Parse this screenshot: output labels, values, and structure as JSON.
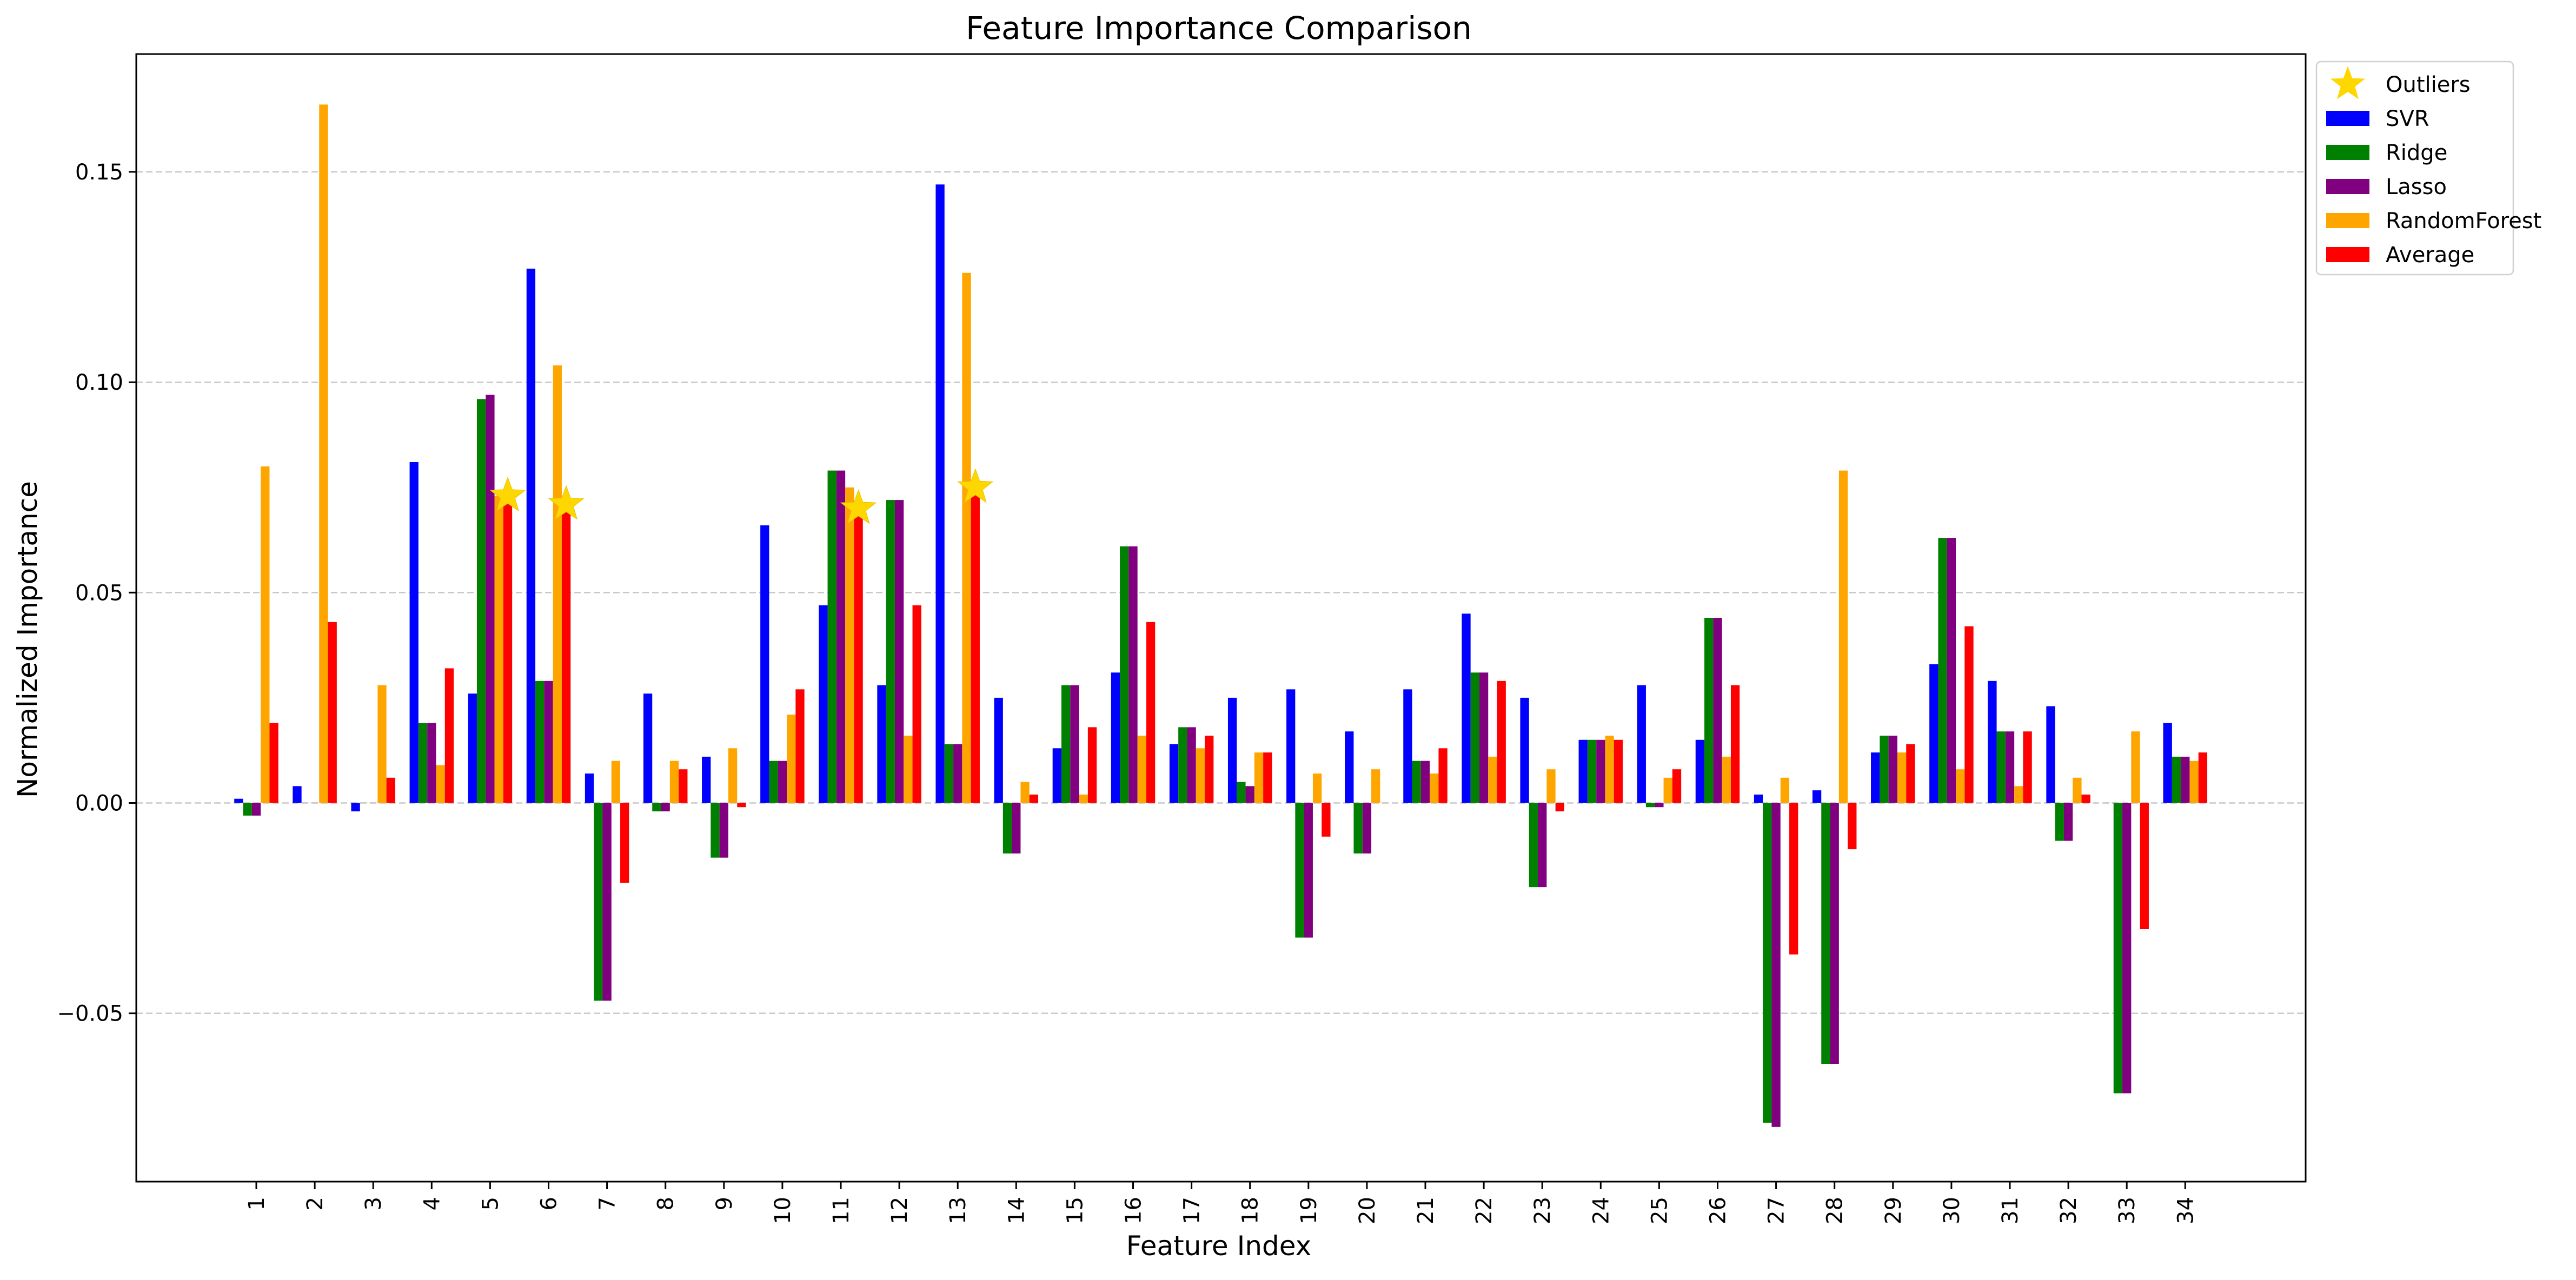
{
  "chart_data": {
    "type": "bar",
    "title": "Feature Importance Comparison",
    "xlabel": "Feature Index",
    "ylabel": "Normalized Importance",
    "ylim": [
      -0.09,
      0.178
    ],
    "yticks": [
      -0.05,
      0.0,
      0.05,
      0.1,
      0.15
    ],
    "ytick_labels": [
      "−0.05",
      "0.00",
      "0.05",
      "0.10",
      "0.15"
    ],
    "grid": "horizontal dashed",
    "legend_position": "outside upper-right",
    "categories": [
      "1",
      "2",
      "3",
      "4",
      "5",
      "6",
      "7",
      "8",
      "9",
      "10",
      "11",
      "12",
      "13",
      "14",
      "15",
      "16",
      "17",
      "18",
      "19",
      "20",
      "21",
      "22",
      "23",
      "24",
      "25",
      "26",
      "27",
      "28",
      "29",
      "30",
      "31",
      "32",
      "33",
      "34"
    ],
    "series": [
      {
        "name": "SVR",
        "color": "#0000ff",
        "values": [
          0.001,
          0.004,
          -0.002,
          0.081,
          0.026,
          0.127,
          0.007,
          0.026,
          0.011,
          0.066,
          0.047,
          0.028,
          0.147,
          0.025,
          0.013,
          0.031,
          0.014,
          0.025,
          0.027,
          0.017,
          0.027,
          0.045,
          0.025,
          0.015,
          0.028,
          0.015,
          0.002,
          0.003,
          0.012,
          0.033,
          0.029,
          0.023,
          0.0,
          0.019
        ]
      },
      {
        "name": "Ridge",
        "color": "#008000",
        "values": [
          -0.003,
          0.0,
          0.0,
          0.019,
          0.096,
          0.029,
          -0.047,
          -0.002,
          -0.013,
          0.01,
          0.079,
          0.072,
          0.014,
          -0.012,
          0.028,
          0.061,
          0.018,
          0.005,
          -0.032,
          -0.012,
          0.01,
          0.031,
          -0.02,
          0.015,
          -0.001,
          0.044,
          -0.076,
          -0.062,
          0.016,
          0.063,
          0.017,
          -0.009,
          -0.069,
          0.011
        ]
      },
      {
        "name": "Lasso",
        "color": "#800080",
        "values": [
          -0.003,
          0.0,
          0.0,
          0.019,
          0.097,
          0.029,
          -0.047,
          -0.002,
          -0.013,
          0.01,
          0.079,
          0.072,
          0.014,
          -0.012,
          0.028,
          0.061,
          0.018,
          0.004,
          -0.032,
          -0.012,
          0.01,
          0.031,
          -0.02,
          0.015,
          -0.001,
          0.044,
          -0.077,
          -0.062,
          0.016,
          0.063,
          0.017,
          -0.009,
          -0.069,
          0.011
        ]
      },
      {
        "name": "RandomForest",
        "color": "#ffa500",
        "values": [
          0.08,
          0.166,
          0.028,
          0.009,
          0.073,
          0.104,
          0.01,
          0.01,
          0.013,
          0.021,
          0.075,
          0.016,
          0.126,
          0.005,
          0.002,
          0.016,
          0.013,
          0.012,
          0.007,
          0.008,
          0.007,
          0.011,
          0.008,
          0.016,
          0.006,
          0.011,
          0.006,
          0.079,
          0.012,
          0.008,
          0.004,
          0.006,
          0.017,
          0.01
        ]
      },
      {
        "name": "Average",
        "color": "#ff0000",
        "values": [
          0.019,
          0.043,
          0.006,
          0.032,
          0.073,
          0.071,
          -0.019,
          0.008,
          -0.001,
          0.027,
          0.07,
          0.047,
          0.075,
          0.002,
          0.018,
          0.043,
          0.016,
          0.012,
          -0.008,
          0.0,
          0.013,
          0.029,
          -0.002,
          0.015,
          0.008,
          0.028,
          -0.036,
          -0.011,
          0.014,
          0.042,
          0.017,
          0.002,
          -0.03,
          0.012
        ]
      }
    ],
    "outliers": {
      "name": "Outliers",
      "color": "#ffd700",
      "marker": "star",
      "categories": [
        "5",
        "6",
        "11",
        "13"
      ],
      "values": [
        0.073,
        0.071,
        0.07,
        0.075
      ]
    }
  }
}
